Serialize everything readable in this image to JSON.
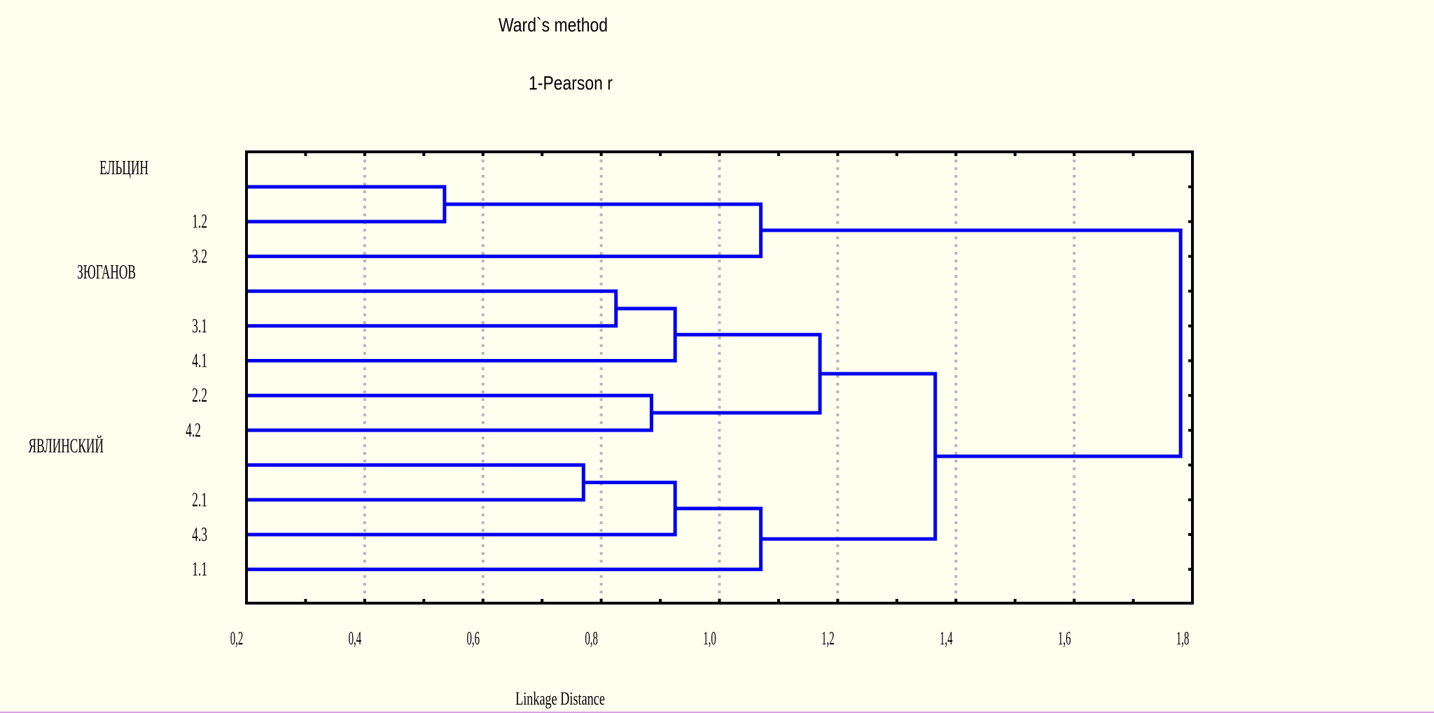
{
  "chart_data": {
    "type": "dendrogram",
    "title": "Ward`s method",
    "subtitle": "1-Pearson r",
    "xlabel": "Linkage Distance",
    "ylabel": "",
    "xlim": [
      0.2,
      1.8
    ],
    "x_ticks": [
      0.2,
      0.4,
      0.6,
      0.8,
      1.0,
      1.2,
      1.4,
      1.6,
      1.8
    ],
    "x_tick_labels": [
      "0,2",
      "0,4",
      "0,6",
      "0,8",
      "1,0",
      "1,2",
      "1,4",
      "1,6",
      "1,8"
    ],
    "grid": "vertical dotted",
    "leaves": [
      "ЕЛЬЦИН",
      "1.2",
      "3.2",
      "ЗЮГАНОВ",
      "3.1",
      "4.1",
      "2.2",
      "4.2",
      "ЯВЛИНСКИЙ",
      "2.1",
      "4.3",
      "1.1"
    ],
    "merges": [
      {
        "a": 0,
        "b": 1,
        "height": 0.535
      },
      {
        "a": 12,
        "b": 2,
        "height": 1.07
      },
      {
        "a": 3,
        "b": 4,
        "height": 0.825
      },
      {
        "a": 14,
        "b": 5,
        "height": 0.925
      },
      {
        "a": 6,
        "b": 7,
        "height": 0.885
      },
      {
        "a": 15,
        "b": 16,
        "height": 1.17
      },
      {
        "a": 8,
        "b": 9,
        "height": 0.77
      },
      {
        "a": 18,
        "b": 10,
        "height": 0.925
      },
      {
        "a": 19,
        "b": 11,
        "height": 1.07
      },
      {
        "a": 17,
        "b": 20,
        "height": 1.365
      },
      {
        "a": 13,
        "b": 21,
        "height": 1.78
      }
    ]
  },
  "colors": {
    "background": "#fffff0",
    "branch": "#0000ee",
    "axis": "#000000",
    "grid": "#b8b8b8"
  }
}
